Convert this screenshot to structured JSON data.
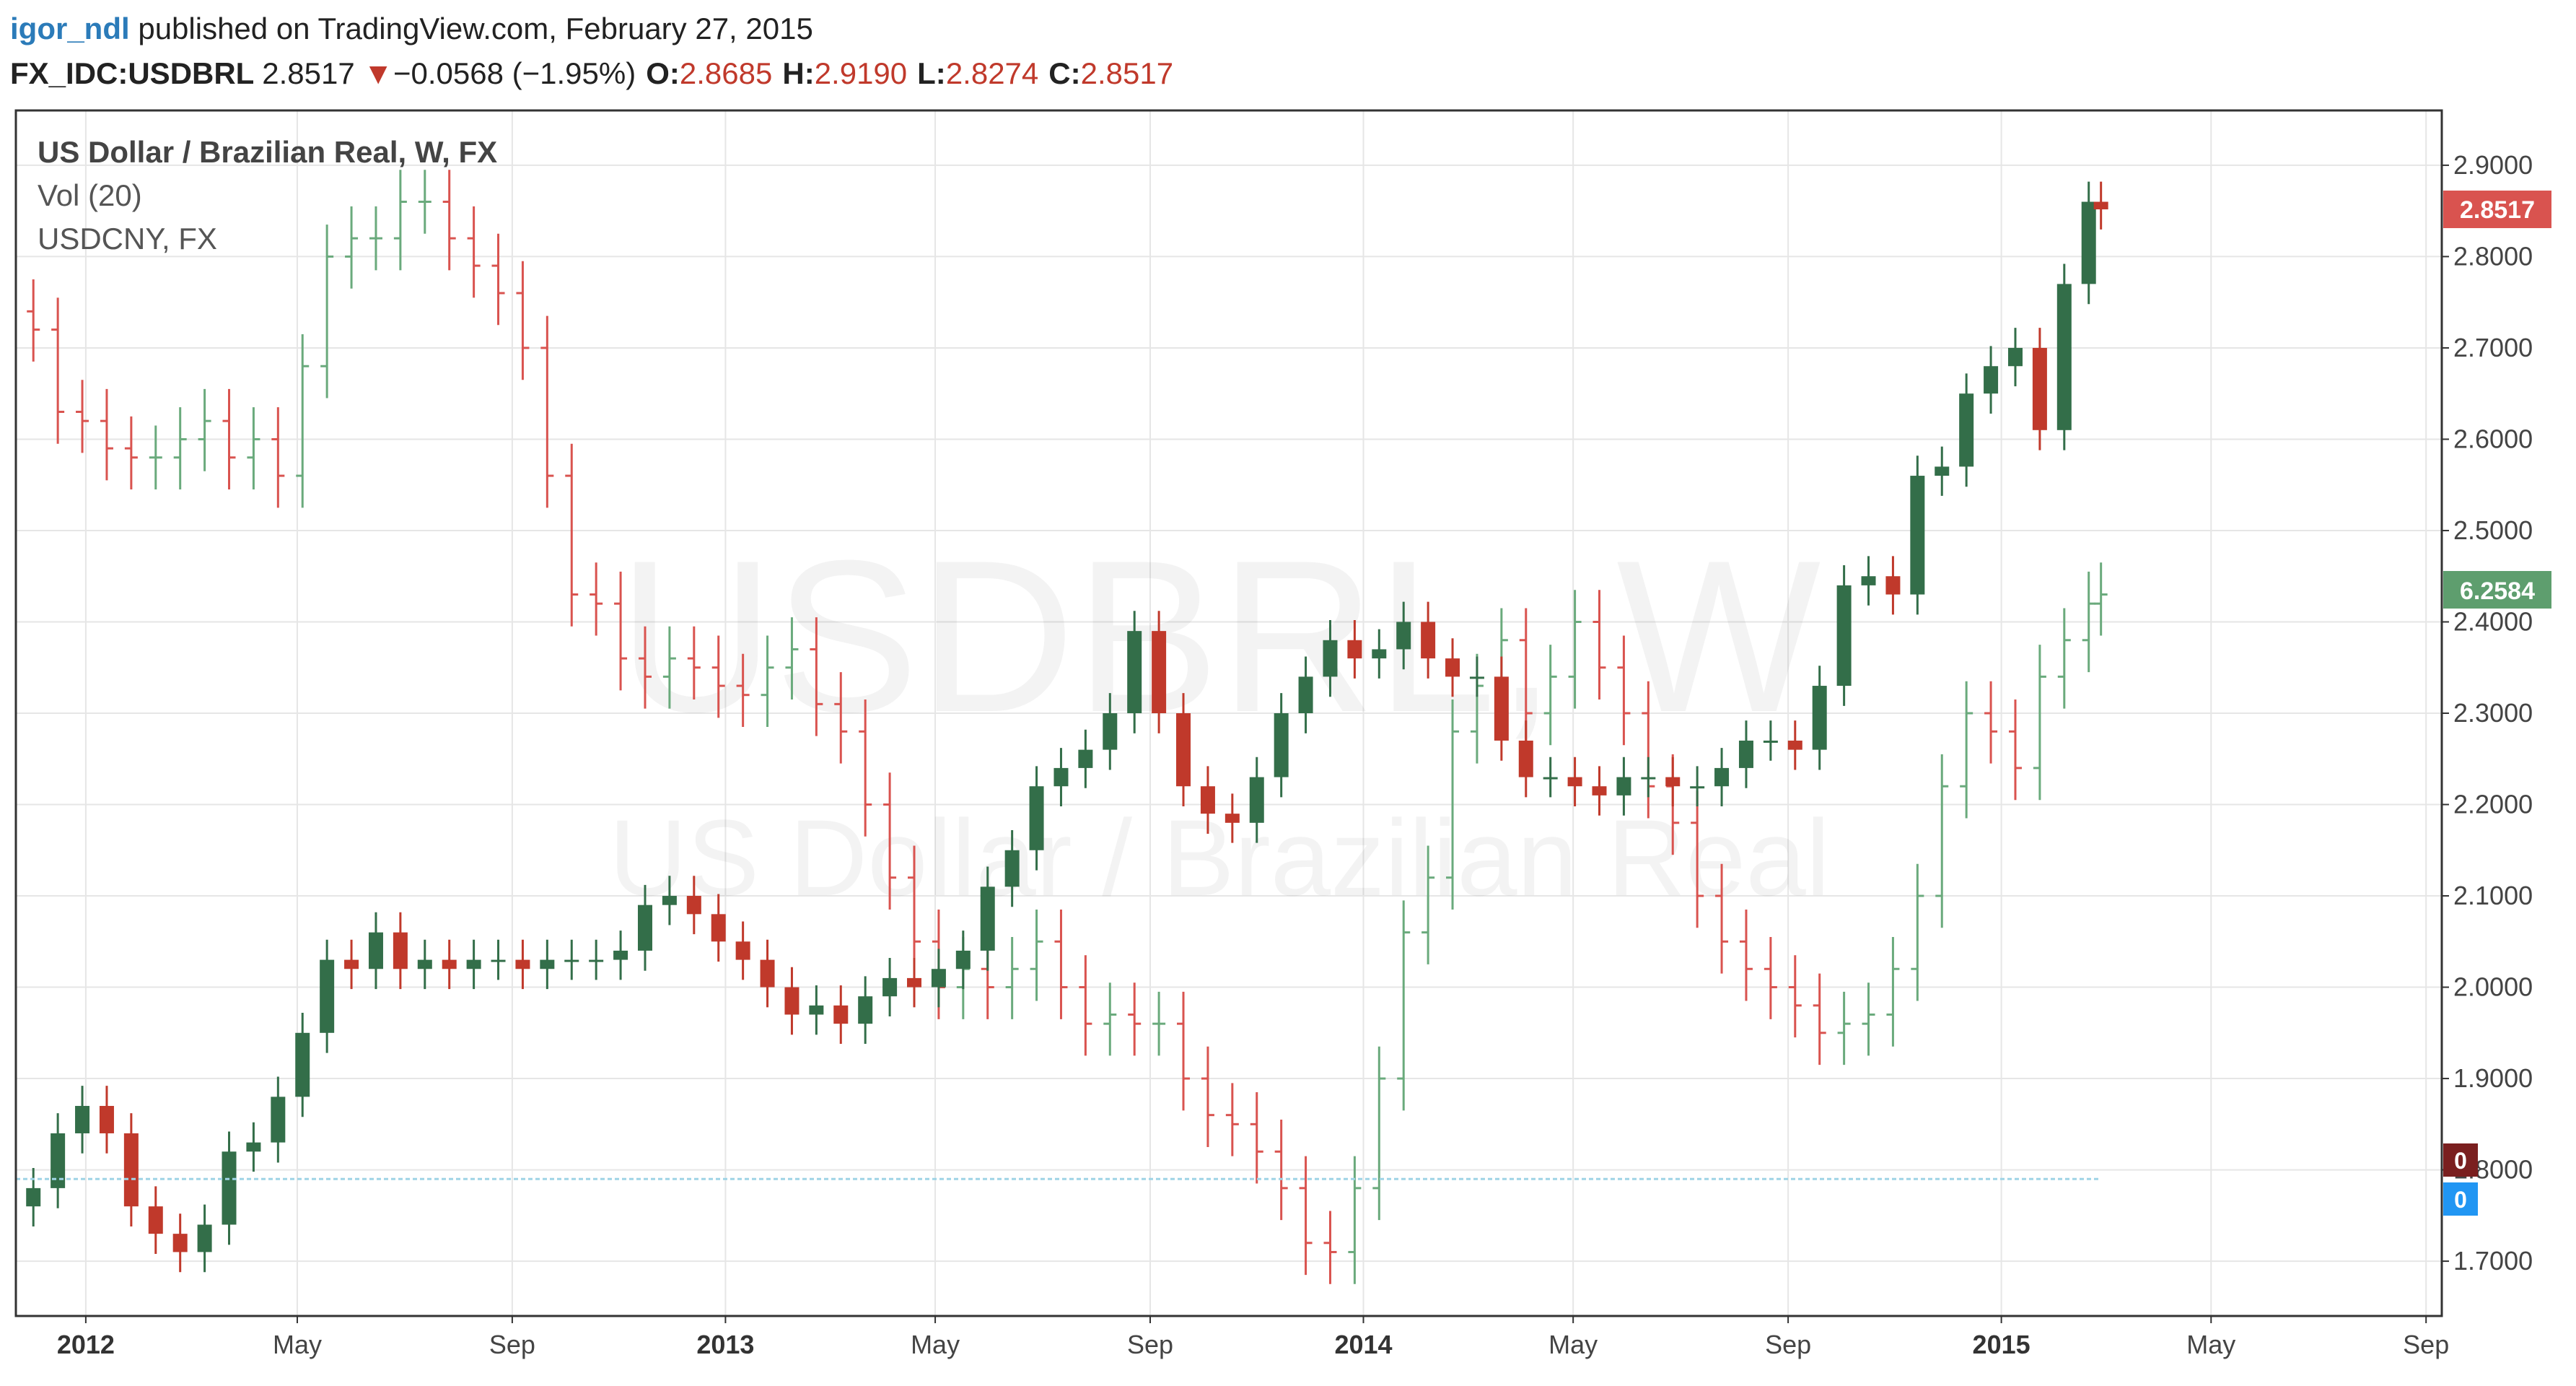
{
  "header": {
    "author": "igor_ndl",
    "published_text": " published on TradingView.com, February 27, 2015",
    "symbol": "FX_IDC:USDBRL",
    "last": "2.8517",
    "change_arrow": "▼",
    "change": "−0.0568 (−1.95%)",
    "open_label": "O:",
    "open": "2.8685",
    "high_label": "H:",
    "high": "2.9190",
    "low_label": "L:",
    "low": "2.8274",
    "close_label": "C:",
    "close": "2.8517"
  },
  "legend": {
    "main_series": "US Dollar / Brazilian Real, W, FX",
    "indicator": "Vol (20)",
    "compare": "USDCNY, FX"
  },
  "watermark": {
    "symbol": "USDBRL, W",
    "description": "US Dollar / Brazilian Real"
  },
  "price_badges": {
    "usdbrl": "2.8517",
    "usdcny": "6.2584",
    "vol1": "0",
    "vol2": "0"
  },
  "colors": {
    "up": "#336e49",
    "down": "#c0392b",
    "compare_up": "#6aaa7c",
    "compare_down": "#d9534f",
    "badge_red": "#d9534f",
    "badge_green": "#5e9e6e",
    "badge_darkred": "#7a1f1f",
    "badge_blue": "#2196f3",
    "volume_line": "#9fd4e6",
    "axis": "#333333",
    "grid": "#e6e6e6"
  },
  "chart_data": {
    "type": "candlestick",
    "title": "US Dollar / Brazilian Real, W, FX",
    "timeframe": "W",
    "y_ticks": [
      "2.9000",
      "2.8000",
      "2.7000",
      "2.6000",
      "2.5000",
      "2.4000",
      "2.3000",
      "2.2000",
      "2.1000",
      "2.0000",
      "1.9000",
      "1.8000",
      "1.7000"
    ],
    "x_ticks": [
      {
        "label": "2012",
        "bold": true
      },
      {
        "label": "May",
        "bold": false
      },
      {
        "label": "Sep",
        "bold": false
      },
      {
        "label": "2013",
        "bold": true
      },
      {
        "label": "May",
        "bold": false
      },
      {
        "label": "Sep",
        "bold": false
      },
      {
        "label": "2014",
        "bold": true
      },
      {
        "label": "May",
        "bold": false
      },
      {
        "label": "Sep",
        "bold": false
      },
      {
        "label": "2015",
        "bold": true
      },
      {
        "label": "May",
        "bold": false
      },
      {
        "label": "Sep",
        "bold": false
      }
    ],
    "x_tick_dates": [
      "2012-01-01",
      "2012-05-01",
      "2012-09-01",
      "2013-01-01",
      "2013-05-01",
      "2013-09-01",
      "2014-01-01",
      "2014-05-01",
      "2014-09-01",
      "2015-01-01",
      "2015-05-01",
      "2015-09-01"
    ],
    "ylim": [
      1.64,
      2.96
    ],
    "xlim": [
      "2011-11-22",
      "2015-09-10"
    ],
    "series": [
      {
        "name": "USDBRL",
        "style": "candles",
        "points": [
          [
            "2011-12-02",
            1.78
          ],
          [
            "2011-12-16",
            1.84
          ],
          [
            "2011-12-30",
            1.87
          ],
          [
            "2012-01-13",
            1.84
          ],
          [
            "2012-01-27",
            1.76
          ],
          [
            "2012-02-10",
            1.73
          ],
          [
            "2012-02-24",
            1.71
          ],
          [
            "2012-03-09",
            1.74
          ],
          [
            "2012-03-23",
            1.82
          ],
          [
            "2012-04-06",
            1.83
          ],
          [
            "2012-04-20",
            1.88
          ],
          [
            "2012-05-04",
            1.95
          ],
          [
            "2012-05-18",
            2.03
          ],
          [
            "2012-06-01",
            2.02
          ],
          [
            "2012-06-15",
            2.06
          ],
          [
            "2012-06-29",
            2.02
          ],
          [
            "2012-07-13",
            2.03
          ],
          [
            "2012-07-27",
            2.02
          ],
          [
            "2012-08-10",
            2.03
          ],
          [
            "2012-08-24",
            2.03
          ],
          [
            "2012-09-07",
            2.02
          ],
          [
            "2012-09-21",
            2.03
          ],
          [
            "2012-10-05",
            2.03
          ],
          [
            "2012-10-19",
            2.03
          ],
          [
            "2012-11-02",
            2.04
          ],
          [
            "2012-11-16",
            2.09
          ],
          [
            "2012-11-30",
            2.1
          ],
          [
            "2012-12-14",
            2.08
          ],
          [
            "2012-12-28",
            2.05
          ],
          [
            "2013-01-11",
            2.03
          ],
          [
            "2013-01-25",
            2.0
          ],
          [
            "2013-02-08",
            1.97
          ],
          [
            "2013-02-22",
            1.98
          ],
          [
            "2013-03-08",
            1.96
          ],
          [
            "2013-03-22",
            1.99
          ],
          [
            "2013-04-05",
            2.01
          ],
          [
            "2013-04-19",
            2.0
          ],
          [
            "2013-05-03",
            2.02
          ],
          [
            "2013-05-17",
            2.04
          ],
          [
            "2013-05-31",
            2.11
          ],
          [
            "2013-06-14",
            2.15
          ],
          [
            "2013-06-28",
            2.22
          ],
          [
            "2013-07-12",
            2.24
          ],
          [
            "2013-07-26",
            2.26
          ],
          [
            "2013-08-09",
            2.3
          ],
          [
            "2013-08-23",
            2.39
          ],
          [
            "2013-09-06",
            2.3
          ],
          [
            "2013-09-20",
            2.22
          ],
          [
            "2013-10-04",
            2.19
          ],
          [
            "2013-10-18",
            2.18
          ],
          [
            "2013-11-01",
            2.23
          ],
          [
            "2013-11-15",
            2.3
          ],
          [
            "2013-11-29",
            2.34
          ],
          [
            "2013-12-13",
            2.38
          ],
          [
            "2013-12-27",
            2.36
          ],
          [
            "2014-01-10",
            2.37
          ],
          [
            "2014-01-24",
            2.4
          ],
          [
            "2014-02-07",
            2.36
          ],
          [
            "2014-02-21",
            2.34
          ],
          [
            "2014-03-07",
            2.34
          ],
          [
            "2014-03-21",
            2.27
          ],
          [
            "2014-04-04",
            2.23
          ],
          [
            "2014-04-18",
            2.23
          ],
          [
            "2014-05-02",
            2.22
          ],
          [
            "2014-05-16",
            2.21
          ],
          [
            "2014-05-30",
            2.23
          ],
          [
            "2014-06-13",
            2.23
          ],
          [
            "2014-06-27",
            2.22
          ],
          [
            "2014-07-11",
            2.22
          ],
          [
            "2014-07-25",
            2.24
          ],
          [
            "2014-08-08",
            2.27
          ],
          [
            "2014-08-22",
            2.27
          ],
          [
            "2014-09-05",
            2.26
          ],
          [
            "2014-09-19",
            2.33
          ],
          [
            "2014-10-03",
            2.44
          ],
          [
            "2014-10-17",
            2.45
          ],
          [
            "2014-10-31",
            2.43
          ],
          [
            "2014-11-14",
            2.56
          ],
          [
            "2014-11-28",
            2.57
          ],
          [
            "2014-12-12",
            2.65
          ],
          [
            "2014-12-26",
            2.68
          ],
          [
            "2015-01-09",
            2.7
          ],
          [
            "2015-01-23",
            2.61
          ],
          [
            "2015-02-06",
            2.77
          ],
          [
            "2015-02-20",
            2.86
          ],
          [
            "2015-02-27",
            2.8517
          ]
        ]
      },
      {
        "name": "USDCNY",
        "style": "bars",
        "points": [
          [
            "2011-12-02",
            2.72
          ],
          [
            "2011-12-16",
            2.63
          ],
          [
            "2011-12-30",
            2.62
          ],
          [
            "2012-01-13",
            2.59
          ],
          [
            "2012-01-27",
            2.58
          ],
          [
            "2012-02-10",
            2.58
          ],
          [
            "2012-02-24",
            2.6
          ],
          [
            "2012-03-09",
            2.62
          ],
          [
            "2012-03-23",
            2.58
          ],
          [
            "2012-04-06",
            2.6
          ],
          [
            "2012-04-20",
            2.56
          ],
          [
            "2012-05-04",
            2.68
          ],
          [
            "2012-05-18",
            2.8
          ],
          [
            "2012-06-01",
            2.82
          ],
          [
            "2012-06-15",
            2.82
          ],
          [
            "2012-06-29",
            2.86
          ],
          [
            "2012-07-13",
            2.86
          ],
          [
            "2012-07-27",
            2.82
          ],
          [
            "2012-08-10",
            2.79
          ],
          [
            "2012-08-24",
            2.76
          ],
          [
            "2012-09-07",
            2.7
          ],
          [
            "2012-09-21",
            2.56
          ],
          [
            "2012-10-05",
            2.43
          ],
          [
            "2012-10-19",
            2.42
          ],
          [
            "2012-11-02",
            2.36
          ],
          [
            "2012-11-16",
            2.34
          ],
          [
            "2012-11-30",
            2.36
          ],
          [
            "2012-12-14",
            2.35
          ],
          [
            "2012-12-28",
            2.33
          ],
          [
            "2013-01-11",
            2.32
          ],
          [
            "2013-01-25",
            2.35
          ],
          [
            "2013-02-08",
            2.37
          ],
          [
            "2013-02-22",
            2.31
          ],
          [
            "2013-03-08",
            2.28
          ],
          [
            "2013-03-22",
            2.2
          ],
          [
            "2013-04-05",
            2.12
          ],
          [
            "2013-04-19",
            2.05
          ],
          [
            "2013-05-03",
            2.0
          ],
          [
            "2013-05-17",
            2.02
          ],
          [
            "2013-05-31",
            2.0
          ],
          [
            "2013-06-14",
            2.02
          ],
          [
            "2013-06-28",
            2.05
          ],
          [
            "2013-07-12",
            2.0
          ],
          [
            "2013-07-26",
            1.96
          ],
          [
            "2013-08-09",
            1.97
          ],
          [
            "2013-08-23",
            1.96
          ],
          [
            "2013-09-06",
            1.96
          ],
          [
            "2013-09-20",
            1.9
          ],
          [
            "2013-10-04",
            1.86
          ],
          [
            "2013-10-18",
            1.85
          ],
          [
            "2013-11-01",
            1.82
          ],
          [
            "2013-11-15",
            1.78
          ],
          [
            "2013-11-29",
            1.72
          ],
          [
            "2013-12-13",
            1.71
          ],
          [
            "2013-12-27",
            1.78
          ],
          [
            "2014-01-10",
            1.9
          ],
          [
            "2014-01-24",
            2.06
          ],
          [
            "2014-02-07",
            2.12
          ],
          [
            "2014-02-21",
            2.28
          ],
          [
            "2014-03-07",
            2.33
          ],
          [
            "2014-03-21",
            2.38
          ],
          [
            "2014-04-04",
            2.3
          ],
          [
            "2014-04-18",
            2.34
          ],
          [
            "2014-05-02",
            2.4
          ],
          [
            "2014-05-16",
            2.35
          ],
          [
            "2014-05-30",
            2.3
          ],
          [
            "2014-06-13",
            2.22
          ],
          [
            "2014-06-27",
            2.18
          ],
          [
            "2014-07-11",
            2.1
          ],
          [
            "2014-07-25",
            2.05
          ],
          [
            "2014-08-08",
            2.02
          ],
          [
            "2014-08-22",
            2.0
          ],
          [
            "2014-09-05",
            1.98
          ],
          [
            "2014-09-19",
            1.95
          ],
          [
            "2014-10-03",
            1.96
          ],
          [
            "2014-10-17",
            1.97
          ],
          [
            "2014-10-31",
            2.02
          ],
          [
            "2014-11-14",
            2.1
          ],
          [
            "2014-11-28",
            2.22
          ],
          [
            "2014-12-12",
            2.3
          ],
          [
            "2014-12-26",
            2.28
          ],
          [
            "2015-01-09",
            2.24
          ],
          [
            "2015-01-23",
            2.34
          ],
          [
            "2015-02-06",
            2.38
          ],
          [
            "2015-02-20",
            2.42
          ],
          [
            "2015-02-27",
            2.43
          ]
        ]
      }
    ],
    "last_values": {
      "USDBRL": "2.8517",
      "USDCNY": "6.2584"
    },
    "volume_level": 1.79,
    "grid": true,
    "legend_position": "top-left"
  }
}
